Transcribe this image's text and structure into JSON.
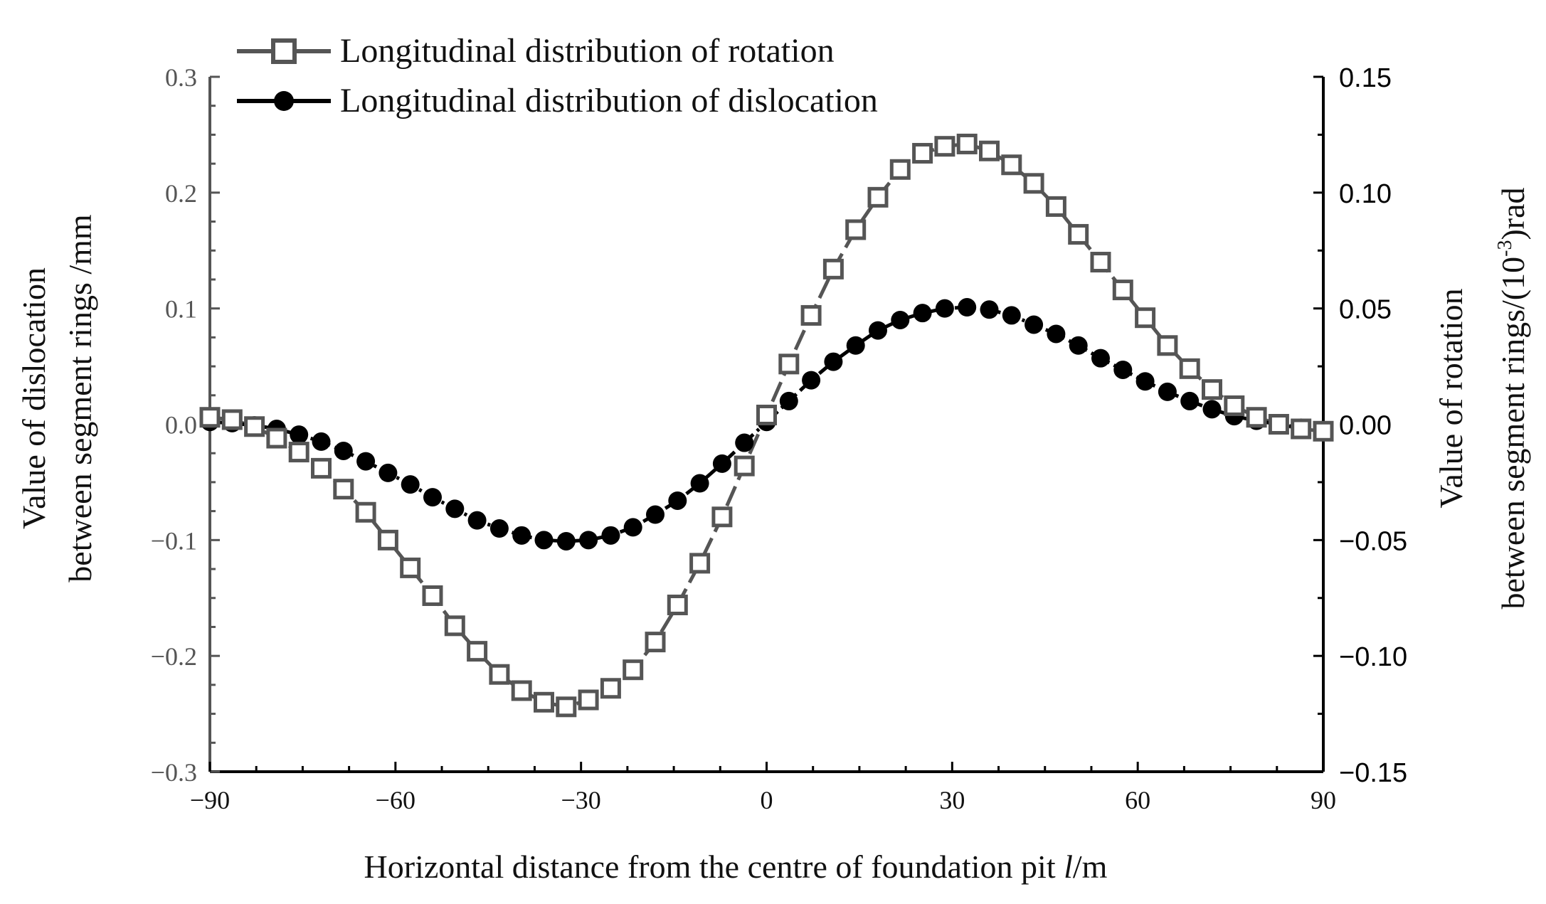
{
  "chart_data": {
    "type": "line",
    "title": "",
    "xlabel": "Horizontal distance from the centre of foundation pit l/m",
    "xlabel_main": "Horizontal distance from the centre of foundation pit ",
    "xlabel_italic": "l",
    "xlabel_unit": "/m",
    "ylabel_left_line1": "Value of dislocation",
    "ylabel_left_line2": "between segment rings /mm",
    "ylabel_right_line1": "Value of rotation",
    "ylabel_right_line2_pre": "between segment rings/(10",
    "ylabel_right_line2_sup": "-3",
    "ylabel_right_line2_post": ")rad",
    "xlim": [
      -90,
      90
    ],
    "ylim_left": [
      -0.3,
      0.3
    ],
    "ylim_right": [
      -0.15,
      0.15
    ],
    "x_ticks": [
      -90,
      -60,
      -30,
      0,
      30,
      60,
      90
    ],
    "x_tick_labels": [
      "−90",
      "−60",
      "−30",
      "0",
      "30",
      "60",
      "90"
    ],
    "y_left_ticks": [
      -0.3,
      -0.2,
      -0.1,
      0.0,
      0.1,
      0.2,
      0.3
    ],
    "y_left_tick_labels": [
      "−0.3",
      "−0.2",
      "−0.1",
      "0.0",
      "0.1",
      "0.2",
      "0.3"
    ],
    "y_right_ticks": [
      -0.15,
      -0.1,
      -0.05,
      0.0,
      0.05,
      0.1,
      0.15
    ],
    "y_right_tick_labels": [
      "−0.15",
      "−0.10",
      "−0.05",
      "0.00",
      "0.05",
      "0.10",
      "0.15"
    ],
    "legend_position": "top-left",
    "series": [
      {
        "name": "Longitudinal distribution of rotation",
        "axis": "right",
        "marker": "open-square",
        "line": "dashed",
        "color": "#555555",
        "x": [
          -90,
          -86.4,
          -82.8,
          -79.2,
          -75.6,
          -72,
          -68.4,
          -64.8,
          -61.2,
          -57.6,
          -54,
          -50.4,
          -46.8,
          -43.2,
          -39.6,
          -36,
          -32.4,
          -28.8,
          -25.2,
          -21.6,
          -18,
          -14.4,
          -10.8,
          -7.2,
          -3.6,
          0,
          3.6,
          7.2,
          10.8,
          14.4,
          18,
          21.6,
          25.2,
          28.8,
          32.4,
          36,
          39.6,
          43.2,
          46.8,
          50.4,
          54,
          57.6,
          61.2,
          64.8,
          68.4,
          72,
          75.6,
          79.2,
          82.8,
          86.4,
          90
        ],
        "values": [
          0.003,
          0.002,
          -0.001,
          -0.006,
          -0.012,
          -0.019,
          -0.028,
          -0.038,
          -0.05,
          -0.062,
          -0.074,
          -0.087,
          -0.098,
          -0.108,
          -0.115,
          -0.12,
          -0.122,
          -0.119,
          -0.114,
          -0.106,
          -0.094,
          -0.078,
          -0.06,
          -0.04,
          -0.018,
          0.004,
          0.026,
          0.047,
          0.067,
          0.084,
          0.098,
          0.11,
          0.117,
          0.12,
          0.121,
          0.118,
          0.112,
          0.104,
          0.094,
          0.082,
          0.07,
          0.058,
          0.046,
          0.034,
          0.024,
          0.015,
          0.008,
          0.003,
          0.0,
          -0.002,
          -0.003
        ]
      },
      {
        "name": "Longitudinal distribution of dislocation",
        "axis": "left",
        "marker": "filled-circle",
        "line": "dash-dot",
        "color": "#000000",
        "x": [
          -90,
          -86.4,
          -82.8,
          -79.2,
          -75.6,
          -72,
          -68.4,
          -64.8,
          -61.2,
          -57.6,
          -54,
          -50.4,
          -46.8,
          -43.2,
          -39.6,
          -36,
          -32.4,
          -28.8,
          -25.2,
          -21.6,
          -18,
          -14.4,
          -10.8,
          -7.2,
          -3.6,
          0,
          3.6,
          7.2,
          10.8,
          14.4,
          18,
          21.6,
          25.2,
          28.8,
          32.4,
          36,
          39.6,
          43.2,
          46.8,
          50.4,
          54,
          57.6,
          61.2,
          64.8,
          68.4,
          72,
          75.6,
          79.2,
          82.8,
          86.4,
          90
        ],
        "values": [
          0.002,
          0.001,
          -0.001,
          -0.004,
          -0.009,
          -0.015,
          -0.023,
          -0.032,
          -0.042,
          -0.052,
          -0.063,
          -0.073,
          -0.083,
          -0.09,
          -0.096,
          -0.1,
          -0.101,
          -0.1,
          -0.096,
          -0.089,
          -0.078,
          -0.066,
          -0.051,
          -0.034,
          -0.016,
          0.002,
          0.02,
          0.038,
          0.054,
          0.068,
          0.081,
          0.09,
          0.096,
          0.1,
          0.101,
          0.099,
          0.094,
          0.086,
          0.078,
          0.068,
          0.057,
          0.047,
          0.037,
          0.028,
          0.02,
          0.013,
          0.007,
          0.003,
          0.0,
          -0.003,
          -0.005
        ]
      }
    ]
  }
}
